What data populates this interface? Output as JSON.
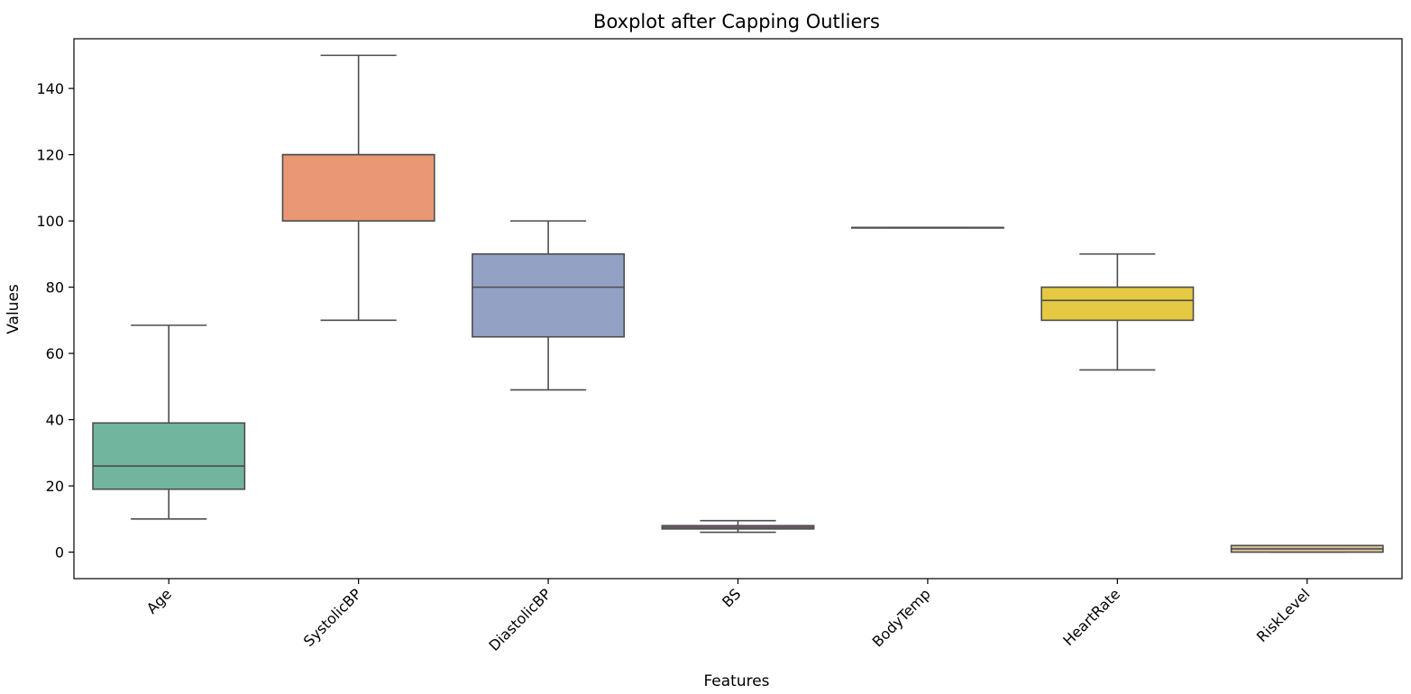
{
  "chart_data": {
    "type": "boxplot",
    "title": "Boxplot after Capping Outliers",
    "xlabel": "Features",
    "ylabel": "Values",
    "ylim": [
      -8,
      155
    ],
    "yticks": [
      0,
      20,
      40,
      60,
      80,
      100,
      120,
      140
    ],
    "grid": false,
    "categories": [
      "Age",
      "SystolicBP",
      "DiastolicBP",
      "BS",
      "BodyTemp",
      "HeartRate",
      "RiskLevel"
    ],
    "boxes": [
      {
        "name": "Age",
        "whisker_low": 10,
        "q1": 19,
        "median": 26,
        "q3": 39,
        "whisker_high": 68.5,
        "color": "#72b59e"
      },
      {
        "name": "SystolicBP",
        "whisker_low": 70,
        "q1": 100,
        "median": 120,
        "q3": 120,
        "whisker_high": 150,
        "color": "#e99775"
      },
      {
        "name": "DiastolicBP",
        "whisker_low": 49,
        "q1": 65,
        "median": 80,
        "q3": 90,
        "whisker_high": 100,
        "color": "#93a2c4"
      },
      {
        "name": "BS",
        "whisker_low": 6,
        "q1": 7,
        "median": 7.5,
        "q3": 8,
        "whisker_high": 9.5,
        "color": "#d99ac7"
      },
      {
        "name": "BodyTemp",
        "whisker_low": 98,
        "q1": 98,
        "median": 98,
        "q3": 98,
        "whisker_high": 98,
        "color": "#a6d854"
      },
      {
        "name": "HeartRate",
        "whisker_low": 55,
        "q1": 70,
        "median": 76,
        "q3": 80,
        "whisker_high": 90,
        "color": "#e5c943"
      },
      {
        "name": "RiskLevel",
        "whisker_low": 0,
        "q1": 0,
        "median": 1,
        "q3": 2,
        "whisker_high": 2,
        "color": "#d9c49a"
      }
    ]
  }
}
